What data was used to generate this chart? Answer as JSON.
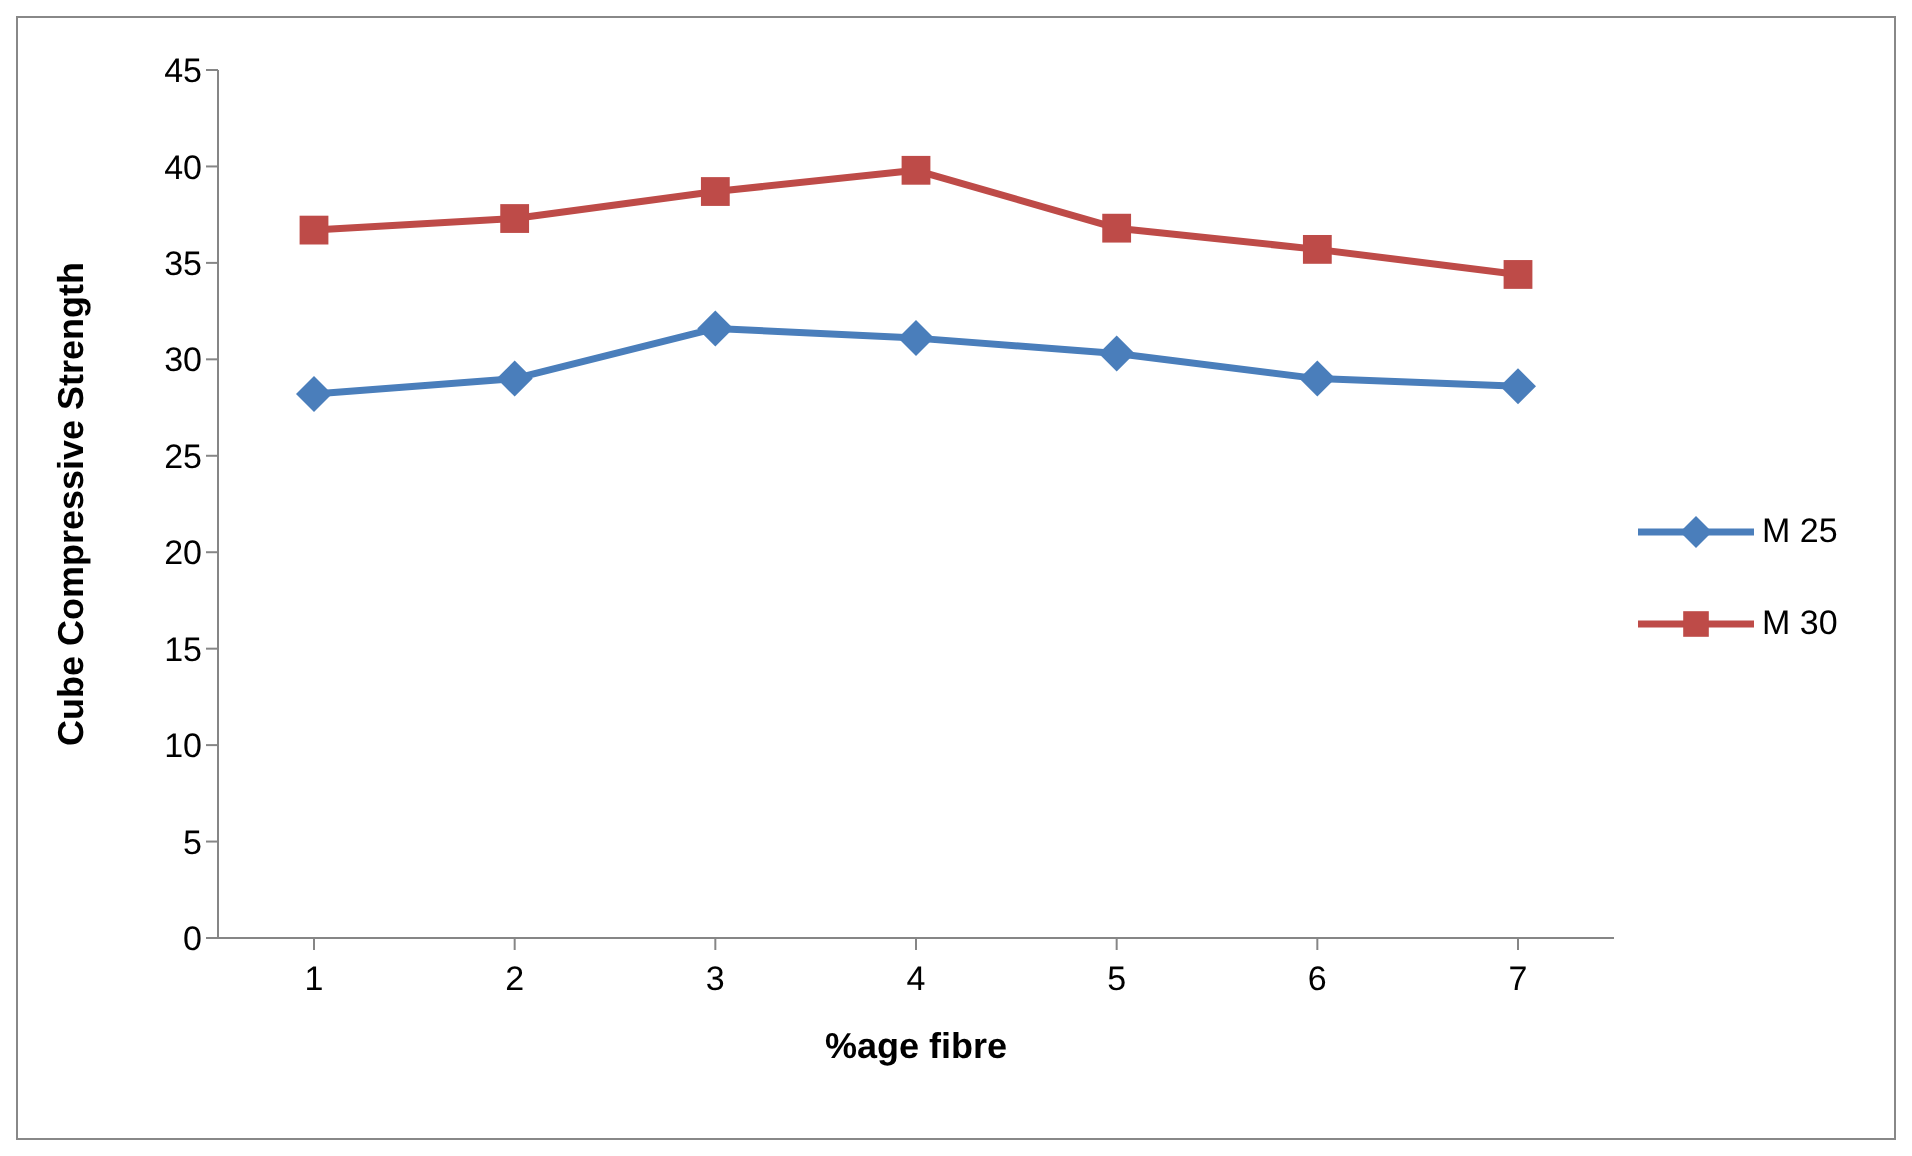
{
  "chart_data": {
    "type": "line",
    "xlabel": "%age fibre",
    "ylabel": "Cube Compressive Strength",
    "categories": [
      "1",
      "2",
      "3",
      "4",
      "5",
      "6",
      "7"
    ],
    "series": [
      {
        "name": "M 25",
        "color": "#4a7ebb",
        "marker": "diamond",
        "values": [
          28.2,
          29.0,
          31.6,
          31.1,
          30.3,
          29.0,
          28.6
        ]
      },
      {
        "name": "M 30",
        "color": "#be4b48",
        "marker": "square",
        "values": [
          36.7,
          37.3,
          38.7,
          39.8,
          36.8,
          35.7,
          34.4
        ]
      }
    ],
    "ylim": [
      0,
      45
    ],
    "yticks": [
      0,
      5,
      10,
      15,
      20,
      25,
      30,
      35,
      40,
      45
    ],
    "grid": false,
    "legend": "right"
  }
}
